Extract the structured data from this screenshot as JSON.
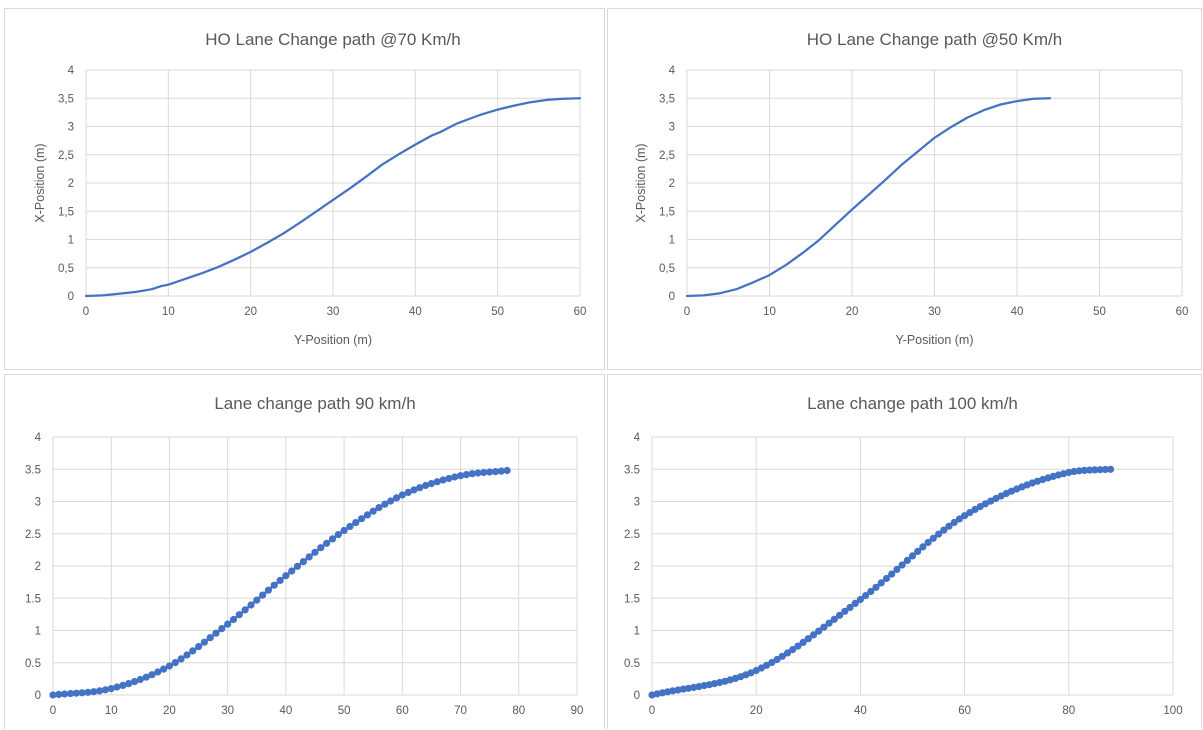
{
  "chart_data": [
    {
      "type": "line",
      "title": "HO Lane Change path @70 Km/h",
      "xlabel": "Y-Position (m)",
      "ylabel": "X-Position (m)",
      "xlim": [
        0,
        60
      ],
      "ylim": [
        0,
        4
      ],
      "xticks": [
        "0",
        "10",
        "20",
        "30",
        "40",
        "50",
        "60"
      ],
      "yticks": [
        "0",
        "0,5",
        "1",
        "1,5",
        "2",
        "2,5",
        "3",
        "3,5",
        "4"
      ],
      "grid": true,
      "markers": false,
      "color": "#4472c4",
      "x": [
        0,
        2,
        4,
        6,
        8,
        9,
        10,
        12,
        14,
        16,
        18,
        20,
        22,
        24,
        26,
        28,
        30,
        32,
        34,
        36,
        38,
        40,
        42,
        43,
        45,
        47,
        48,
        50,
        52,
        54,
        56,
        58,
        60
      ],
      "y": [
        0,
        0.01,
        0.04,
        0.07,
        0.12,
        0.17,
        0.2,
        0.3,
        0.4,
        0.51,
        0.64,
        0.78,
        0.94,
        1.11,
        1.3,
        1.5,
        1.7,
        1.9,
        2.11,
        2.33,
        2.51,
        2.68,
        2.84,
        2.9,
        3.05,
        3.16,
        3.21,
        3.3,
        3.37,
        3.43,
        3.47,
        3.49,
        3.5
      ]
    },
    {
      "type": "line",
      "title": "HO Lane Change path @50 Km/h",
      "xlabel": "Y-Position (m)",
      "ylabel": "X-Position (m)",
      "xlim": [
        0,
        60
      ],
      "ylim": [
        0,
        4
      ],
      "xticks": [
        "0",
        "10",
        "20",
        "30",
        "40",
        "50",
        "60"
      ],
      "yticks": [
        "0",
        "0,5",
        "1",
        "1,5",
        "2",
        "2,5",
        "3",
        "3,5",
        "4"
      ],
      "grid": true,
      "markers": false,
      "color": "#4472c4",
      "x": [
        0,
        2,
        4,
        6,
        8,
        10,
        12,
        14,
        16,
        18,
        20,
        22,
        24,
        26,
        28,
        30,
        32,
        34,
        36,
        38,
        40,
        42,
        44
      ],
      "y": [
        0,
        0.01,
        0.05,
        0.12,
        0.24,
        0.37,
        0.55,
        0.76,
        0.99,
        1.26,
        1.53,
        1.79,
        2.05,
        2.32,
        2.56,
        2.8,
        2.99,
        3.16,
        3.29,
        3.39,
        3.45,
        3.49,
        3.5
      ]
    },
    {
      "type": "scatter",
      "title": "Lane change path 90 km/h",
      "xlabel": "",
      "ylabel": "",
      "xlim": [
        0,
        90
      ],
      "ylim": [
        0,
        4
      ],
      "xticks": [
        "0",
        "10",
        "20",
        "30",
        "40",
        "50",
        "60",
        "70",
        "80",
        "90"
      ],
      "yticks": [
        "0",
        "0.5",
        "1",
        "1.5",
        "2",
        "2.5",
        "3",
        "3.5",
        "4"
      ],
      "grid": true,
      "markers": true,
      "color": "#4472c4",
      "point_count": 79,
      "x_end": 78,
      "y_final": 3.5,
      "x": [
        0,
        10,
        20,
        30,
        40,
        50,
        60,
        70,
        78
      ],
      "y": [
        0,
        0.1,
        0.45,
        1.1,
        1.85,
        2.55,
        3.1,
        3.4,
        3.48
      ]
    },
    {
      "type": "scatter",
      "title": "Lane change path 100 km/h",
      "xlabel": "",
      "ylabel": "",
      "xlim": [
        0,
        100
      ],
      "ylim": [
        0,
        4
      ],
      "xticks": [
        "0",
        "20",
        "40",
        "60",
        "80",
        "100"
      ],
      "yticks": [
        "0",
        "0.5",
        "1",
        "1.5",
        "2",
        "2.5",
        "3",
        "3.5",
        "4"
      ],
      "grid": true,
      "markers": true,
      "color": "#4472c4",
      "point_count": 89,
      "x_end": 88,
      "y_final": 3.5,
      "x": [
        0,
        20,
        40,
        60,
        80,
        88
      ],
      "y": [
        0,
        0.38,
        1.48,
        2.78,
        3.45,
        3.5
      ]
    }
  ]
}
